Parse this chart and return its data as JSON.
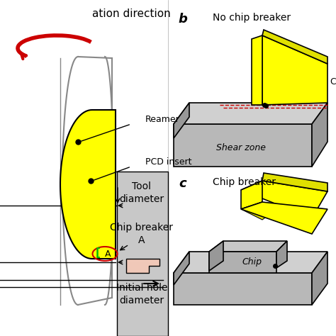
{
  "bg_color": "#ffffff",
  "yellow": "#ffff00",
  "yellow_dark": "#e0e000",
  "gray_box": "#c8c8c8",
  "pink": "#f0c8b8",
  "red": "#cc0000",
  "green": "#00bb00",
  "blk3d_front": "#b8b8b8",
  "blk3d_top": "#d0d0d0",
  "blk3d_right": "#989898",
  "chip3d_top": "#c8c8c8",
  "chip3d_front": "#b0b0b0",
  "rot_dir": "ation direction",
  "reamer_lbl": "Reamer",
  "pcd_lbl": "PCD insert",
  "tool_dia": "Tool\ndiameter",
  "chip_brk": "Chip breaker\nA",
  "init_hole": "Initial hole\ndiameter",
  "b_lbl": "b",
  "c_lbl": "c",
  "no_chip_lbl": "No chip break",
  "chip_brk_lbl": "Chip breaker",
  "shear_lbl": "Shear zone",
  "chip_lbl": "Chip"
}
